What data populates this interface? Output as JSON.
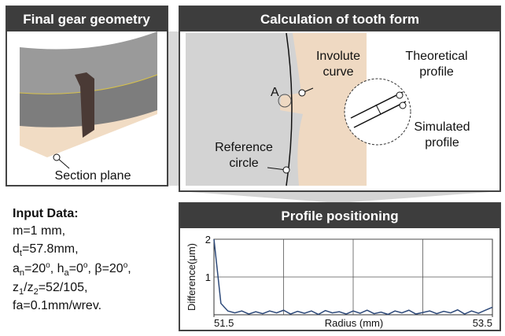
{
  "panels": {
    "geometry": {
      "title": "Final gear geometry",
      "label": "Section plane"
    },
    "tooth_form": {
      "title": "Calculation of tooth form",
      "point": "A",
      "involute": [
        "Involute",
        "curve"
      ],
      "theoretical": [
        "Theoretical",
        "profile"
      ],
      "simulated": [
        "Simulated",
        "profile"
      ],
      "reference": [
        "Reference",
        "circle"
      ]
    },
    "positioning": {
      "title": "Profile positioning"
    }
  },
  "input_data": {
    "title": "Input Data:",
    "lines": [
      [
        "m=1 mm,"
      ],
      [
        "d",
        "t",
        "=57.8mm,"
      ],
      [
        "a",
        "n",
        "=20",
        "o",
        ", h",
        "a",
        "=0",
        "o",
        ", β=20",
        "o",
        ","
      ],
      [
        "z",
        "1",
        "/z",
        "2",
        "=52/105,"
      ],
      [
        "fa=0.1mm/wrev."
      ]
    ]
  },
  "chart": {
    "type": "line",
    "x_label": "Radius (mm)",
    "y_label": "Difference(μm)",
    "color": "#2e4a7a",
    "x": [
      51.5,
      51.55,
      51.6,
      51.65,
      51.7,
      51.75,
      51.8,
      51.85,
      51.9,
      51.95,
      52,
      52.05,
      52.1,
      52.15,
      52.2,
      52.25,
      52.3,
      52.35,
      52.4,
      52.45,
      52.5,
      52.55,
      52.6,
      52.65,
      52.7,
      52.75,
      52.8,
      52.85,
      52.9,
      52.95,
      53,
      53.05,
      53.1,
      53.15,
      53.2,
      53.25,
      53.3,
      53.35,
      53.4,
      53.45,
      53.5
    ],
    "values": [
      2.0,
      0.3,
      0.1,
      0.05,
      0.1,
      0.02,
      0.08,
      0.03,
      0.1,
      0.05,
      0.12,
      0.02,
      0.09,
      0.04,
      0.1,
      0.01,
      0.11,
      0.05,
      0.08,
      0.02,
      0.1,
      0.04,
      0.12,
      0.03,
      0.07,
      0.01,
      0.1,
      0.05,
      0.12,
      0.02,
      0.06,
      0.1,
      0.03,
      0.09,
      0.05,
      0.13,
      0.02,
      0.1,
      0.04,
      0.12,
      0.2
    ],
    "xlim": [
      51.5,
      53.5
    ],
    "ylim": [
      0,
      2
    ],
    "xticks": [
      51.5,
      53.5
    ],
    "xgrid": [
      52,
      52.5,
      53
    ],
    "yticks": [
      1,
      2
    ],
    "grid": true
  }
}
